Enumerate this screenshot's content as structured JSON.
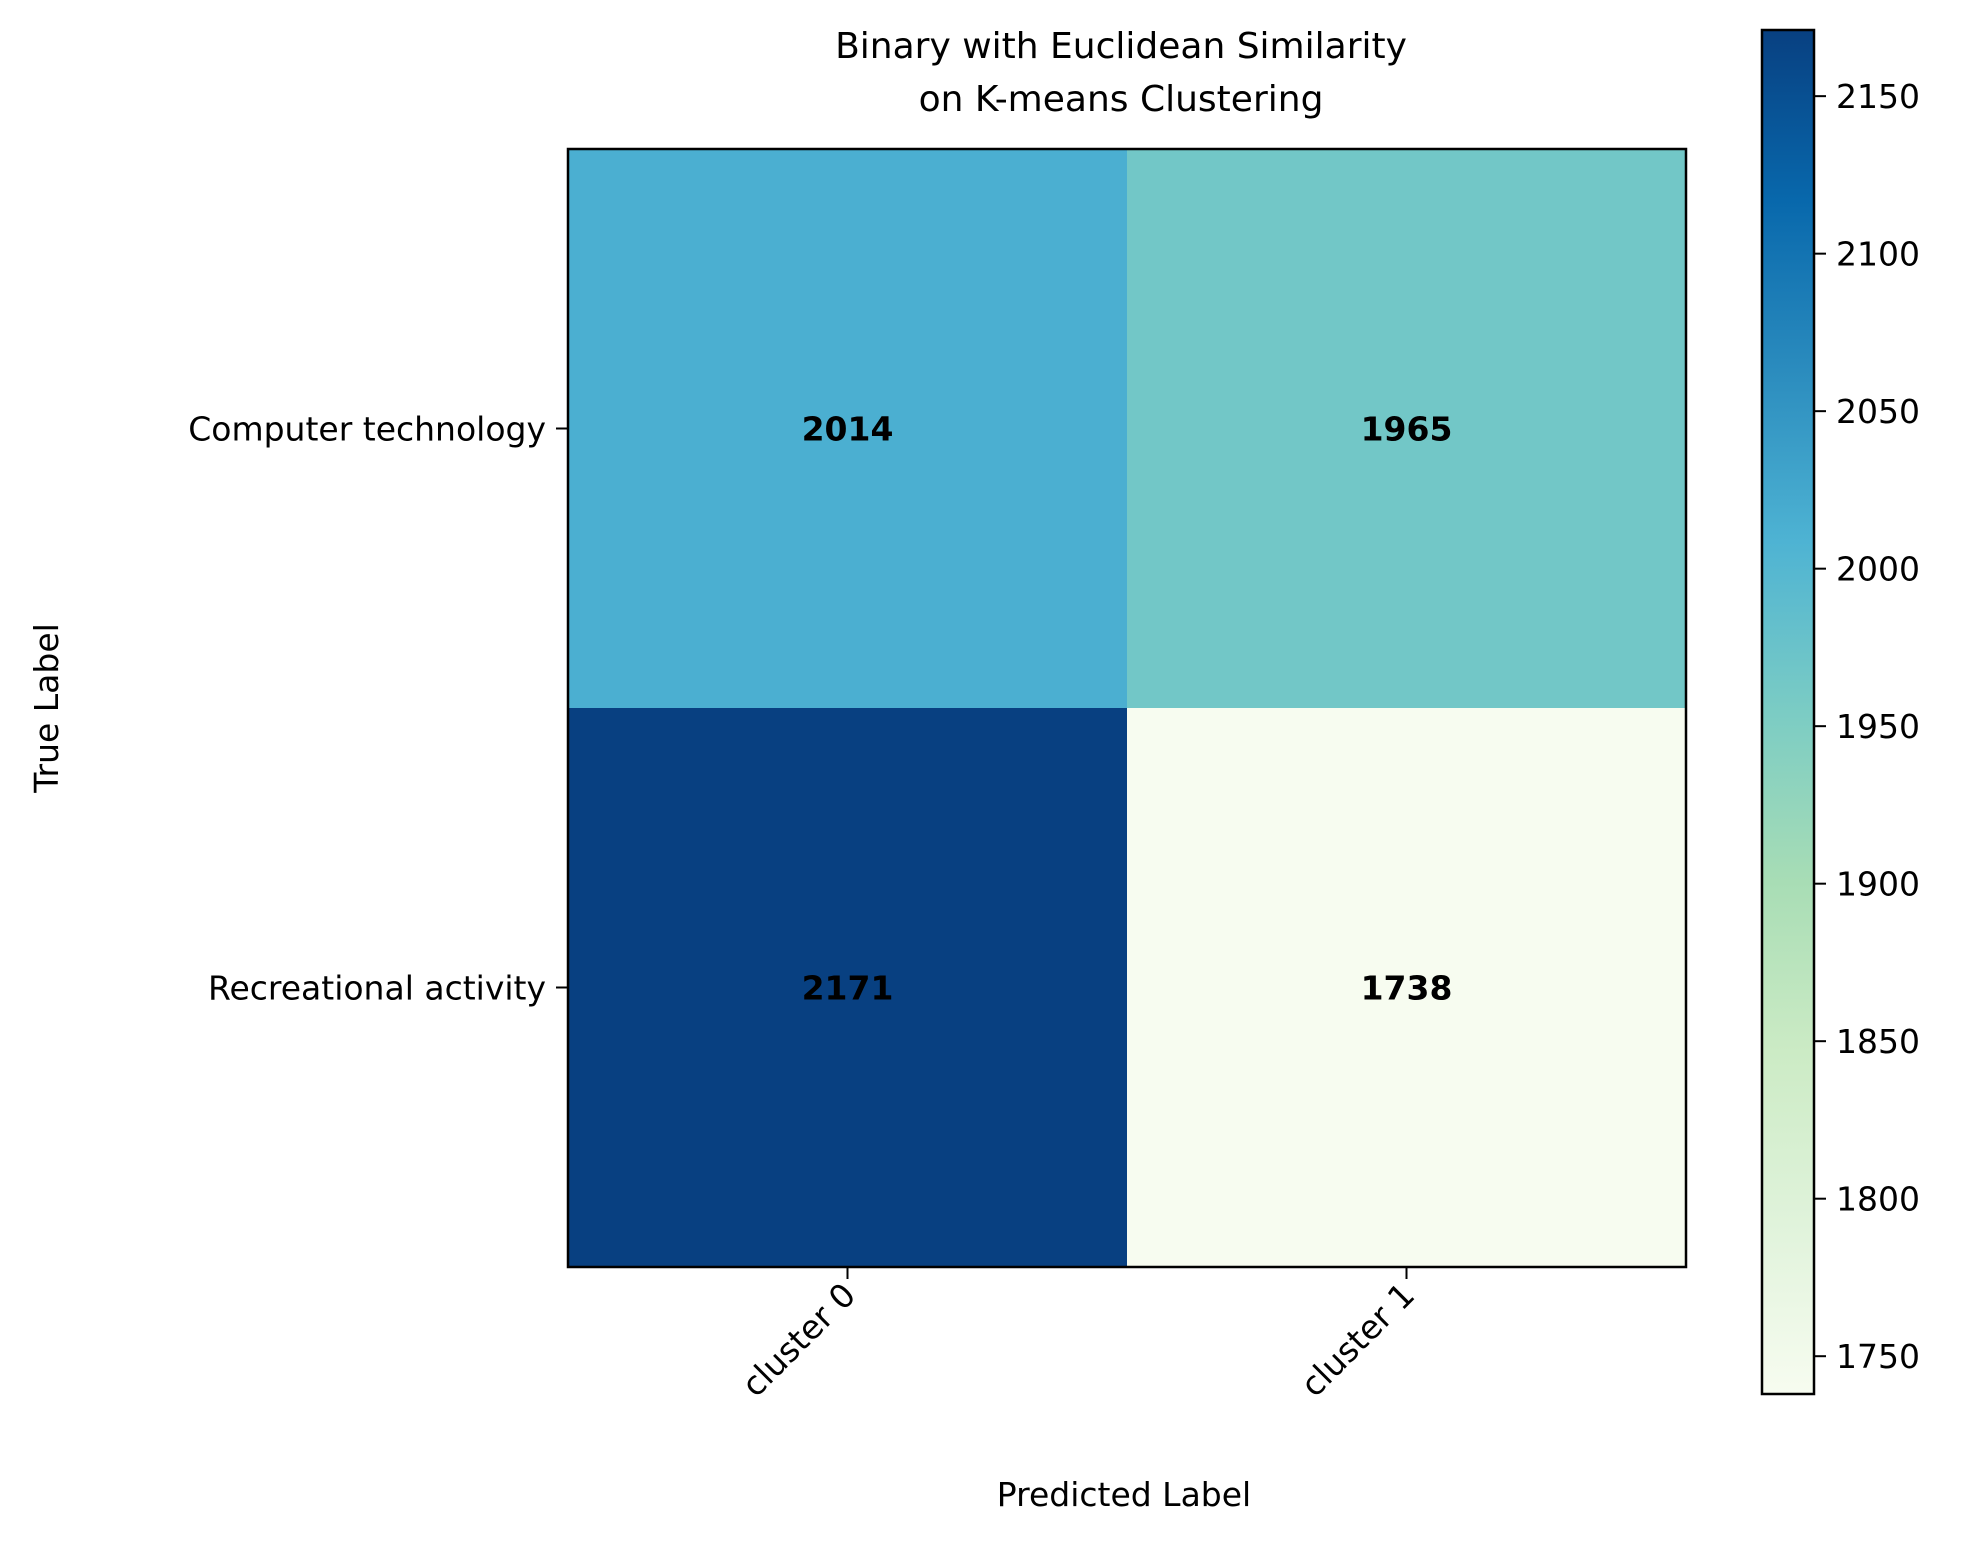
{
  "chart_data": {
    "type": "heatmap",
    "title_lines": [
      "Binary with Euclidean Similarity",
      "on K-means Clustering"
    ],
    "xlabel": "Predicted Label",
    "ylabel": "True Label",
    "x_categories": [
      "cluster 0",
      "cluster 1"
    ],
    "y_categories": [
      "Computer technology",
      "Recreational activity"
    ],
    "values": [
      [
        2014,
        1965
      ],
      [
        2171,
        1738
      ]
    ],
    "colorbar": {
      "min": 1738,
      "max": 2171,
      "ticks": [
        1750,
        1800,
        1850,
        1900,
        1950,
        2000,
        2050,
        2100,
        2150
      ],
      "colormap": "GnBu",
      "stops": [
        "#f7fcf0",
        "#e0f3db",
        "#ccebc5",
        "#a8ddb5",
        "#7bccc4",
        "#4eb3d3",
        "#2b8cbe",
        "#0868ac",
        "#084081"
      ]
    },
    "grid": false
  }
}
